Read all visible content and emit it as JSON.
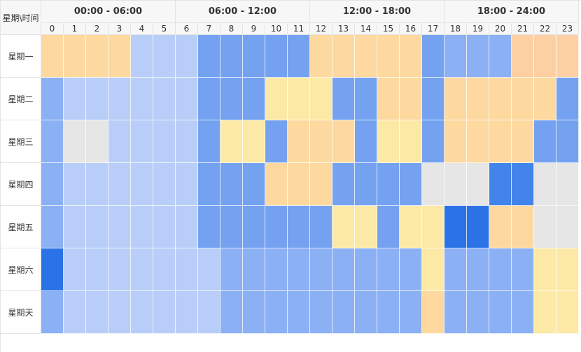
{
  "corner_label": "星期\\时间",
  "ranges": [
    "00:00 - 06:00",
    "06:00 - 12:00",
    "12:00 - 18:00",
    "18:00 - 24:00"
  ],
  "hours": [
    "0",
    "1",
    "2",
    "3",
    "4",
    "5",
    "6",
    "7",
    "8",
    "9",
    "10",
    "11",
    "12",
    "13",
    "14",
    "15",
    "16",
    "17",
    "18",
    "19",
    "20",
    "21",
    "22",
    "23"
  ],
  "days": [
    "星期一",
    "星期二",
    "星期三",
    "星期四",
    "星期五",
    "星期六",
    "星期天"
  ],
  "palette": {
    "L": "#b8cef8",
    "M": "#8cb0f4",
    "D": "#74a2f1",
    "X": "#4384ec",
    "Z": "#2a72e6",
    "Y": "#fde9a6",
    "O": "#fdd9a0",
    "P": "#fdd0a4",
    "G": "#e6e6e6"
  },
  "rows": [
    [
      "O",
      "O",
      "O",
      "O",
      "L",
      "L",
      "L",
      "D",
      "D",
      "D",
      "D",
      "D",
      "O",
      "O",
      "O",
      "O",
      "O",
      "D",
      "M",
      "M",
      "M",
      "P",
      "P",
      "P"
    ],
    [
      "M",
      "L",
      "L",
      "L",
      "L",
      "L",
      "L",
      "D",
      "D",
      "D",
      "Y",
      "Y",
      "Y",
      "D",
      "D",
      "O",
      "O",
      "D",
      "O",
      "O",
      "O",
      "O",
      "O",
      "D"
    ],
    [
      "M",
      "G",
      "G",
      "L",
      "L",
      "L",
      "L",
      "D",
      "Y",
      "Y",
      "D",
      "O",
      "O",
      "O",
      "D",
      "Y",
      "Y",
      "D",
      "O",
      "O",
      "O",
      "O",
      "D",
      "D"
    ],
    [
      "M",
      "L",
      "L",
      "L",
      "L",
      "L",
      "L",
      "D",
      "D",
      "D",
      "O",
      "O",
      "O",
      "D",
      "D",
      "D",
      "D",
      "G",
      "G",
      "G",
      "X",
      "X",
      "G",
      "G"
    ],
    [
      "M",
      "L",
      "L",
      "L",
      "L",
      "L",
      "L",
      "D",
      "D",
      "D",
      "D",
      "D",
      "D",
      "Y",
      "Y",
      "D",
      "Y",
      "Y",
      "Z",
      "Z",
      "O",
      "O",
      "G",
      "G"
    ],
    [
      "Z",
      "L",
      "L",
      "L",
      "L",
      "L",
      "L",
      "L",
      "M",
      "M",
      "M",
      "M",
      "M",
      "M",
      "M",
      "M",
      "M",
      "Y",
      "M",
      "M",
      "M",
      "M",
      "Y",
      "Y"
    ],
    [
      "M",
      "L",
      "L",
      "L",
      "L",
      "L",
      "L",
      "L",
      "M",
      "M",
      "M",
      "M",
      "M",
      "M",
      "M",
      "M",
      "M",
      "O",
      "M",
      "M",
      "M",
      "M",
      "Y",
      "Y"
    ]
  ]
}
